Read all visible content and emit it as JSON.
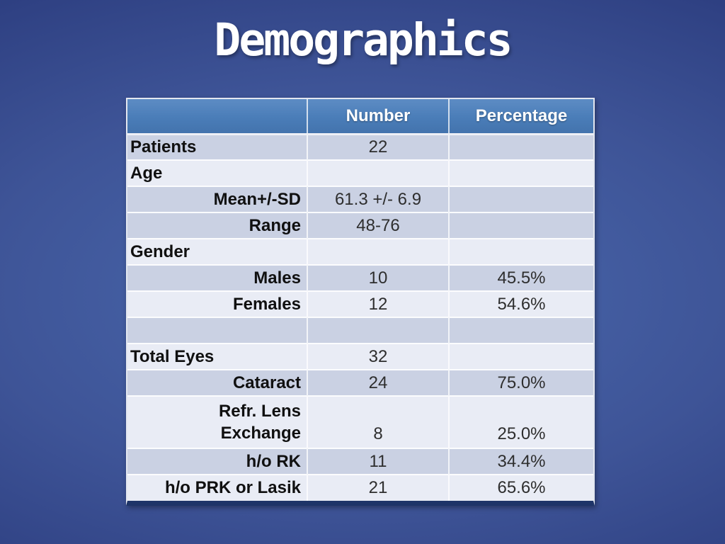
{
  "slide": {
    "title": "Demographics"
  },
  "colors": {
    "background_center": "#4a69ae",
    "background_edge": "#152459",
    "header_bg": "#4a7db8",
    "row_band_dark": "#cad1e3",
    "row_band_light": "#e9ecf5",
    "table_bottom_border": "#1e3468",
    "header_text": "#ffffff",
    "label_text": "#101010",
    "value_text": "#2e2e2e"
  },
  "table": {
    "headers": [
      "",
      "Number",
      "Percentage"
    ],
    "rows": [
      {
        "label": "Patients",
        "number": "22",
        "percentage": ""
      },
      {
        "label": "Age",
        "number": "",
        "percentage": ""
      },
      {
        "label": "Mean+/-SD",
        "number": "61.3 +/- 6.9",
        "percentage": ""
      },
      {
        "label": "Range",
        "number": "48-76",
        "percentage": ""
      },
      {
        "label": "Gender",
        "number": "",
        "percentage": ""
      },
      {
        "label": "Males",
        "number": "10",
        "percentage": "45.5%"
      },
      {
        "label": "Females",
        "number": "12",
        "percentage": "54.6%"
      },
      {
        "label": "",
        "number": "",
        "percentage": ""
      },
      {
        "label": "Total Eyes",
        "number": "32",
        "percentage": ""
      },
      {
        "label": "Cataract",
        "number": "24",
        "percentage": "75.0%"
      },
      {
        "label": "Refr. Lens\nExchange",
        "number": "8",
        "percentage": "25.0%"
      },
      {
        "label": "h/o RK",
        "number": "11",
        "percentage": "34.4%"
      },
      {
        "label": "h/o PRK or Lasik",
        "number": "21",
        "percentage": "65.6%"
      }
    ]
  }
}
